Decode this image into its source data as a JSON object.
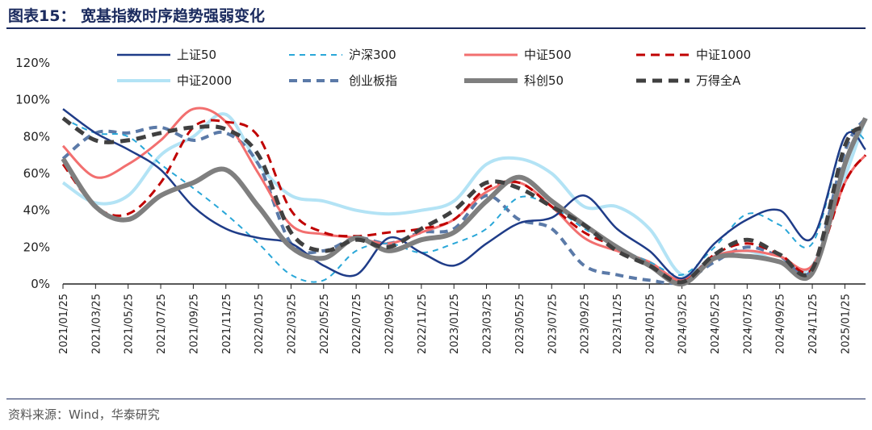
{
  "figure": {
    "title": "图表15：  宽基指数时序趋势强弱变化",
    "source": "资料来源：Wind，华泰研究"
  },
  "chart_data": {
    "type": "line",
    "ylim": [
      0,
      120
    ],
    "y_ticks": [
      "0%",
      "20%",
      "40%",
      "60%",
      "80%",
      "100%",
      "120%"
    ],
    "x_ticks": [
      "2021/01/25",
      "2021/03/25",
      "2021/05/25",
      "2021/07/25",
      "2021/09/25",
      "2021/11/25",
      "2022/01/25",
      "2022/03/25",
      "2022/05/25",
      "2022/07/25",
      "2022/09/25",
      "2022/11/25",
      "2023/01/25",
      "2023/03/25",
      "2023/05/25",
      "2023/07/25",
      "2023/09/25",
      "2023/11/25",
      "2024/01/25",
      "2024/03/25",
      "2024/05/25",
      "2024/07/25",
      "2024/09/25",
      "2024/11/25",
      "2025/01/25"
    ],
    "legend_position": "top",
    "series": [
      {
        "name": "上证50",
        "color": "#1f3c88",
        "dash": "",
        "width": 2.5,
        "x": [
          0,
          1,
          2,
          3,
          4,
          5,
          6,
          7,
          8,
          9,
          10,
          11,
          12,
          13,
          14,
          15,
          16,
          17,
          18,
          19,
          20,
          21,
          22,
          23,
          24,
          25
        ],
        "y": [
          95,
          82,
          73,
          62,
          42,
          30,
          25,
          22,
          10,
          5,
          25,
          17,
          10,
          22,
          33,
          36,
          48,
          30,
          18,
          3,
          22,
          35,
          40,
          25,
          80,
          73
        ]
      },
      {
        "name": "沪深300",
        "color": "#2aa7d8",
        "dash": "7,6",
        "width": 2,
        "x": [
          0,
          1,
          2,
          3,
          4,
          5,
          6,
          7,
          8,
          9,
          10,
          11,
          12,
          13,
          14,
          15,
          16,
          17,
          18,
          19,
          20,
          21,
          22,
          23,
          24,
          25
        ],
        "y": [
          90,
          82,
          80,
          65,
          52,
          38,
          22,
          5,
          2,
          18,
          22,
          17,
          22,
          30,
          47,
          42,
          30,
          20,
          12,
          5,
          20,
          38,
          32,
          22,
          80,
          78
        ]
      },
      {
        "name": "中证500",
        "color": "#f26f6f",
        "dash": "",
        "width": 3,
        "x": [
          0,
          1,
          2,
          3,
          4,
          5,
          6,
          7,
          8,
          9,
          10,
          11,
          12,
          13,
          14,
          15,
          16,
          17,
          18,
          19,
          20,
          21,
          22,
          23,
          24,
          25
        ],
        "y": [
          75,
          58,
          65,
          78,
          95,
          88,
          60,
          32,
          27,
          25,
          22,
          28,
          35,
          50,
          55,
          42,
          25,
          18,
          12,
          2,
          15,
          18,
          15,
          10,
          55,
          70
        ]
      },
      {
        "name": "中证1000",
        "color": "#c00000",
        "dash": "11,7",
        "width": 3,
        "x": [
          0,
          1,
          2,
          3,
          4,
          5,
          6,
          7,
          8,
          9,
          10,
          11,
          12,
          13,
          14,
          15,
          16,
          17,
          18,
          19,
          20,
          21,
          22,
          23,
          24,
          25
        ],
        "y": [
          65,
          42,
          38,
          55,
          85,
          88,
          80,
          40,
          28,
          26,
          28,
          30,
          35,
          52,
          55,
          42,
          28,
          20,
          10,
          1,
          16,
          22,
          16,
          8,
          55,
          70
        ]
      },
      {
        "name": "中证2000",
        "color": "#b3e3f5",
        "dash": "",
        "width": 4,
        "x": [
          0,
          1,
          2,
          3,
          4,
          5,
          6,
          7,
          8,
          9,
          10,
          11,
          12,
          13,
          14,
          15,
          16,
          17,
          18,
          19,
          20,
          21,
          22,
          23,
          24,
          25
        ],
        "y": [
          55,
          44,
          48,
          70,
          80,
          92,
          65,
          48,
          45,
          40,
          38,
          40,
          45,
          65,
          68,
          60,
          42,
          42,
          30,
          5,
          15,
          18,
          12,
          10,
          58,
          90
        ]
      },
      {
        "name": "创业板指",
        "color": "#5b7aa8",
        "dash": "10,7",
        "width": 4,
        "x": [
          0,
          1,
          2,
          3,
          4,
          5,
          6,
          7,
          8,
          9,
          10,
          11,
          12,
          13,
          14,
          15,
          16,
          17,
          18,
          19,
          20,
          21,
          22,
          23,
          24,
          25
        ],
        "y": [
          68,
          82,
          82,
          85,
          78,
          82,
          65,
          22,
          18,
          25,
          22,
          28,
          30,
          48,
          35,
          30,
          10,
          5,
          2,
          1,
          12,
          20,
          15,
          8,
          72,
          90
        ]
      },
      {
        "name": "科创50",
        "color": "#7f7f7f",
        "dash": "",
        "width": 6,
        "x": [
          0,
          1,
          2,
          3,
          4,
          5,
          6,
          7,
          8,
          9,
          10,
          11,
          12,
          13,
          14,
          15,
          16,
          17,
          18,
          19,
          20,
          21,
          22,
          23,
          24,
          25
        ],
        "y": [
          68,
          42,
          35,
          48,
          55,
          62,
          42,
          20,
          14,
          25,
          18,
          24,
          28,
          45,
          58,
          45,
          32,
          20,
          10,
          0,
          14,
          15,
          12,
          6,
          65,
          90
        ]
      },
      {
        "name": "万得全A",
        "color": "#404040",
        "dash": "12,8",
        "width": 5,
        "x": [
          0,
          1,
          2,
          3,
          4,
          5,
          6,
          7,
          8,
          9,
          10,
          11,
          12,
          13,
          14,
          15,
          16,
          17,
          18,
          19,
          20,
          21,
          22,
          23,
          24,
          25
        ],
        "y": [
          90,
          78,
          78,
          82,
          85,
          84,
          70,
          28,
          18,
          24,
          20,
          30,
          40,
          55,
          52,
          42,
          32,
          18,
          10,
          1,
          16,
          24,
          16,
          8,
          75,
          85
        ]
      }
    ]
  }
}
